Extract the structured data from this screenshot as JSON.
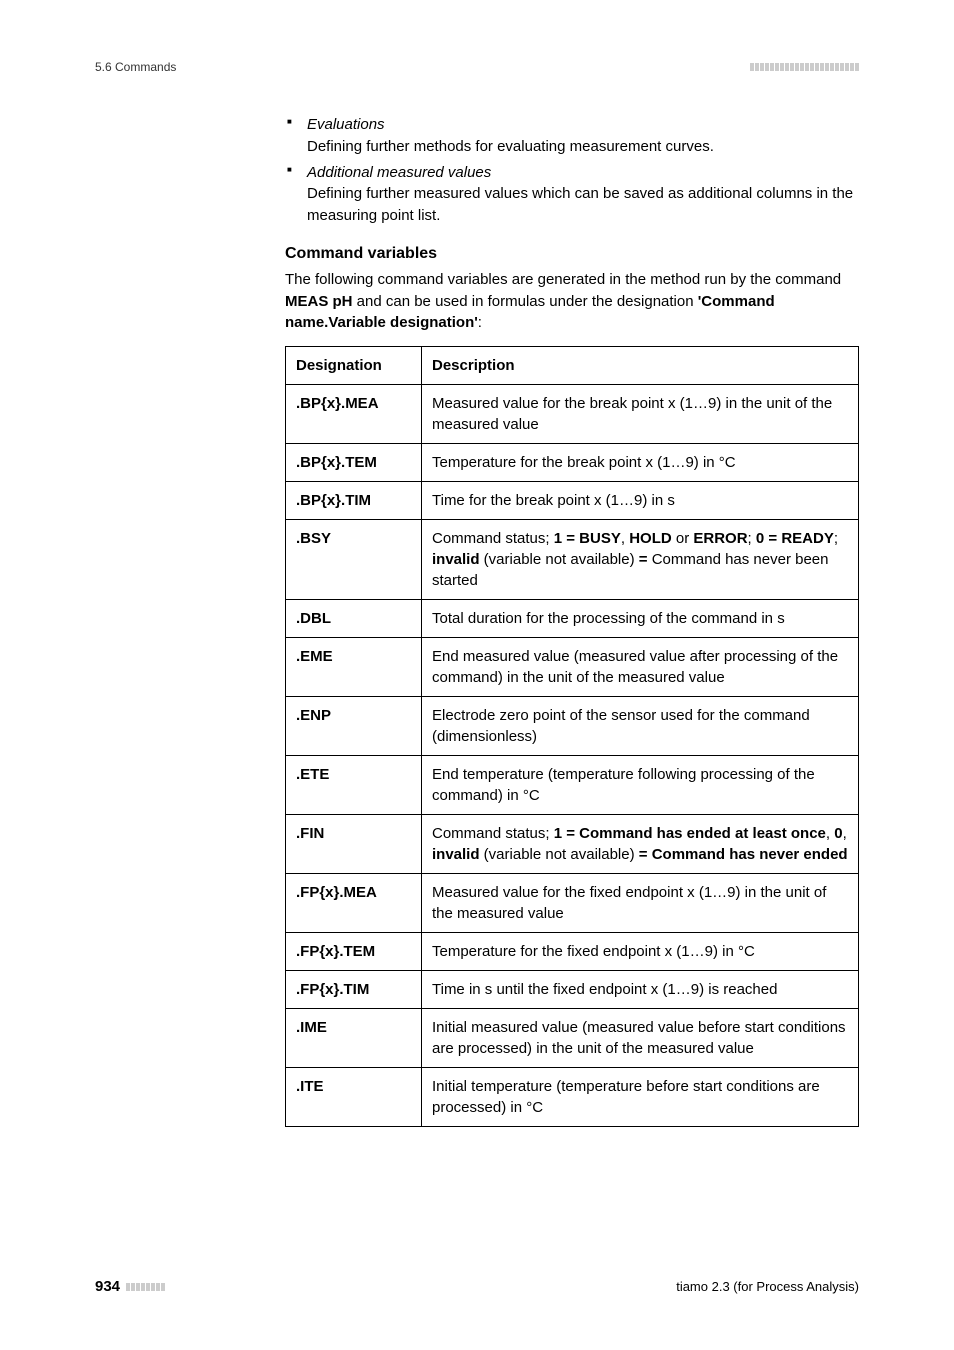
{
  "header": {
    "section": "5.6 Commands"
  },
  "bullets": [
    {
      "title": "Evaluations",
      "desc": "Defining further methods for evaluating measurement curves."
    },
    {
      "title": "Additional measured values",
      "desc": "Defining further measured values which can be saved as additional columns in the measuring point list."
    }
  ],
  "section_title": "Command variables",
  "intro_parts": {
    "p1": "The following command variables are generated in the method run by the command ",
    "b1": "MEAS pH",
    "p2": " and can be used in formulas under the designation ",
    "b2": "'Command name.Variable designation'",
    "p3": ":"
  },
  "table": {
    "col1": "Designation",
    "col2": "Description",
    "rows": [
      {
        "d": ".BP{x}.MEA",
        "desc_plain": "Measured value for the break point x (1…9) in the unit of the measured value"
      },
      {
        "d": ".BP{x}.TEM",
        "desc_plain": "Temperature for the break point x (1…9) in °C"
      },
      {
        "d": ".BP{x}.TIM",
        "desc_plain": "Time for the break point x (1…9) in s"
      },
      {
        "d": ".BSY",
        "desc_html": "Command status; <b>1 = BUSY</b>, <b>HOLD</b> or <b>ERROR</b>; <b>0 = READY</b>; <b>invalid</b> (variable not available) <b>=</b> Command has never been started"
      },
      {
        "d": ".DBL",
        "desc_plain": "Total duration for the processing of the command in s"
      },
      {
        "d": ".EME",
        "desc_plain": "End measured value (measured value after processing of the command) in the unit of the measured value"
      },
      {
        "d": ".ENP",
        "desc_plain": "Electrode zero point of the sensor used for the command (dimensionless)"
      },
      {
        "d": ".ETE",
        "desc_plain": "End temperature (temperature following processing of the command) in °C"
      },
      {
        "d": ".FIN",
        "desc_html": "Command status; <b>1 = Command has ended at least once</b>, <b>0</b>, <b>invalid</b> (variable not available) <b>= Command has never ended</b>"
      },
      {
        "d": ".FP{x}.MEA",
        "desc_plain": "Measured value for the fixed endpoint x (1…9) in the unit of the measured value"
      },
      {
        "d": ".FP{x}.TEM",
        "desc_plain": "Temperature for the fixed endpoint x (1…9) in °C"
      },
      {
        "d": ".FP{x}.TIM",
        "desc_plain": "Time in s until the fixed endpoint x (1…9) is reached"
      },
      {
        "d": ".IME",
        "desc_plain": "Initial measured value (measured value before start conditions are processed) in the unit of the measured value"
      },
      {
        "d": ".ITE",
        "desc_plain": "Initial temperature (temperature before start conditions are processed) in °C"
      }
    ]
  },
  "footer": {
    "page": "934",
    "right": "tiamo 2.3 (for Process Analysis)"
  }
}
